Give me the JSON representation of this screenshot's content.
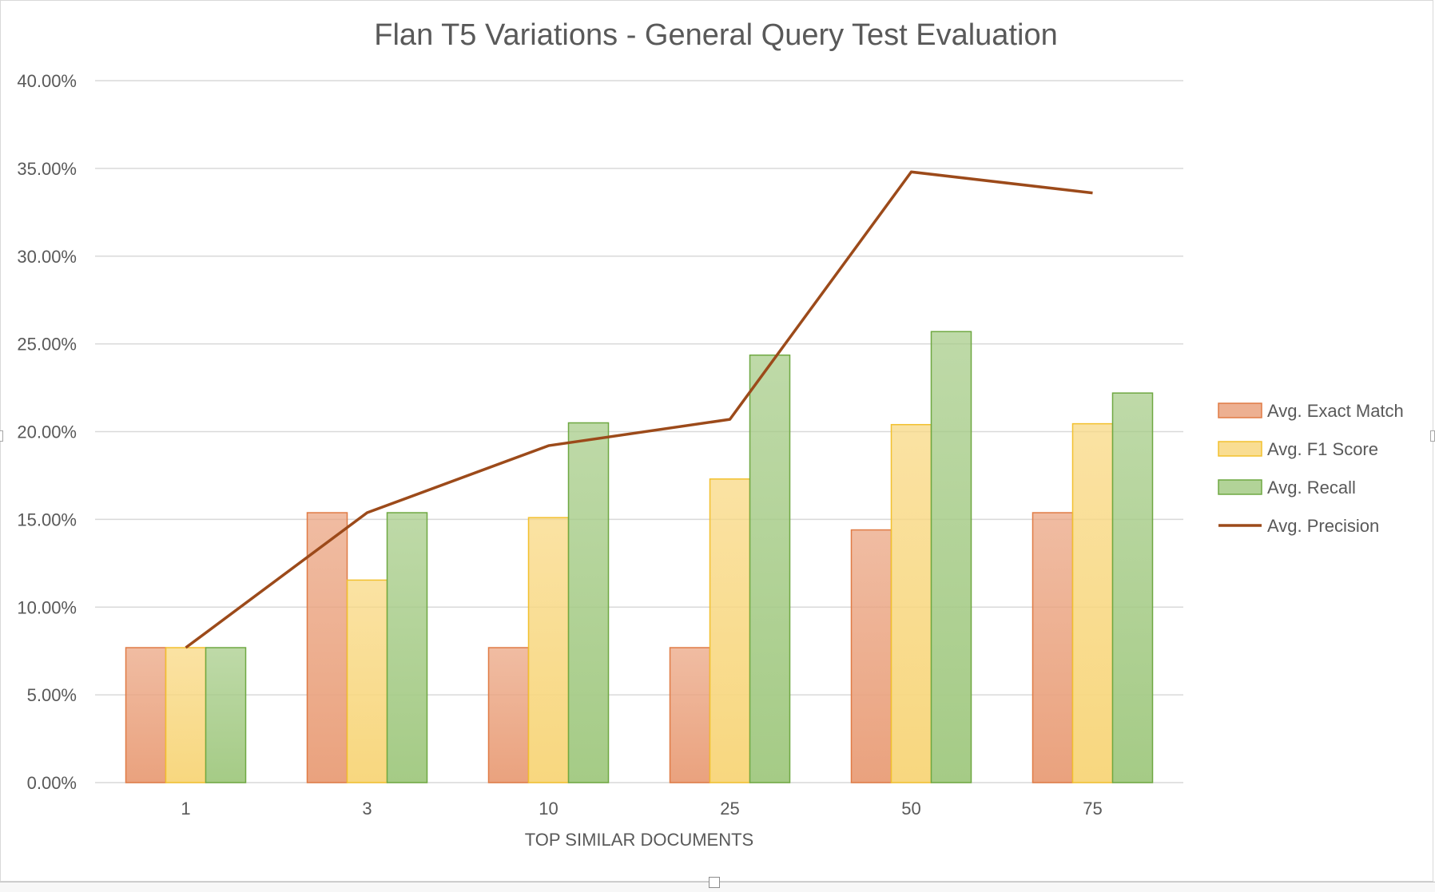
{
  "chart_data": {
    "type": "bar",
    "title": "Flan T5 Variations - General Query Test Evaluation",
    "xlabel": "TOP SIMILAR DOCUMENTS",
    "ylabel": "",
    "categories": [
      "1",
      "3",
      "10",
      "25",
      "50",
      "75"
    ],
    "ylim": [
      0,
      40
    ],
    "yticks": [
      "0.00%",
      "5.00%",
      "10.00%",
      "15.00%",
      "20.00%",
      "25.00%",
      "30.00%",
      "35.00%",
      "40.00%"
    ],
    "grid": true,
    "legend_position": "right",
    "series": [
      {
        "name": "Avg. Exact Match",
        "kind": "bar",
        "color": "#EAA27E",
        "edge": "#E07B45",
        "values": [
          7.69,
          15.38,
          7.69,
          7.69,
          14.4,
          15.38
        ]
      },
      {
        "name": "Avg. F1 Score",
        "kind": "bar",
        "color": "#F8D77F",
        "edge": "#F2C02E",
        "values": [
          7.69,
          11.54,
          15.1,
          17.3,
          20.4,
          20.45
        ]
      },
      {
        "name": "Avg. Recall",
        "kind": "bar",
        "color": "#A5CB86",
        "edge": "#6FA842",
        "values": [
          7.69,
          15.38,
          20.5,
          24.36,
          25.7,
          22.2
        ]
      },
      {
        "name": "Avg. Precision",
        "kind": "line",
        "color": "#9C4A1A",
        "values": [
          7.69,
          15.38,
          19.2,
          20.7,
          34.8,
          33.6
        ]
      }
    ]
  }
}
